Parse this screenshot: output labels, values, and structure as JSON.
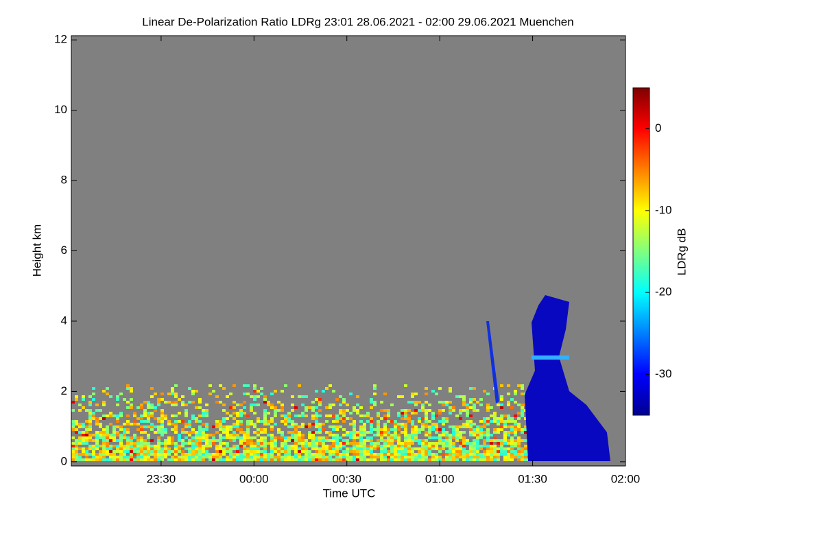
{
  "chart_data": {
    "type": "heatmap",
    "title": "Linear De-Polarization Ratio LDRg   23:01 28.06.2021 - 02:00 29.06.2021 Muenchen",
    "xlabel": "Time UTC",
    "ylabel": "Height km",
    "colorbar_label": "LDRg dB",
    "xlim": [
      -59,
      120
    ],
    "xticks": [
      {
        "value": -30,
        "label": "23:30"
      },
      {
        "value": 0,
        "label": "00:00"
      },
      {
        "value": 30,
        "label": "00:30"
      },
      {
        "value": 60,
        "label": "01:00"
      },
      {
        "value": 90,
        "label": "01:30"
      },
      {
        "value": 120,
        "label": "02:00"
      }
    ],
    "ylim": [
      -0.12,
      12.12
    ],
    "yticks": [
      0,
      2,
      4,
      6,
      8,
      10,
      12
    ],
    "clim": [
      -35,
      5
    ],
    "cticks": [
      0,
      -10,
      -20,
      -30
    ],
    "colormap": "jet",
    "background_color": "#808080"
  }
}
